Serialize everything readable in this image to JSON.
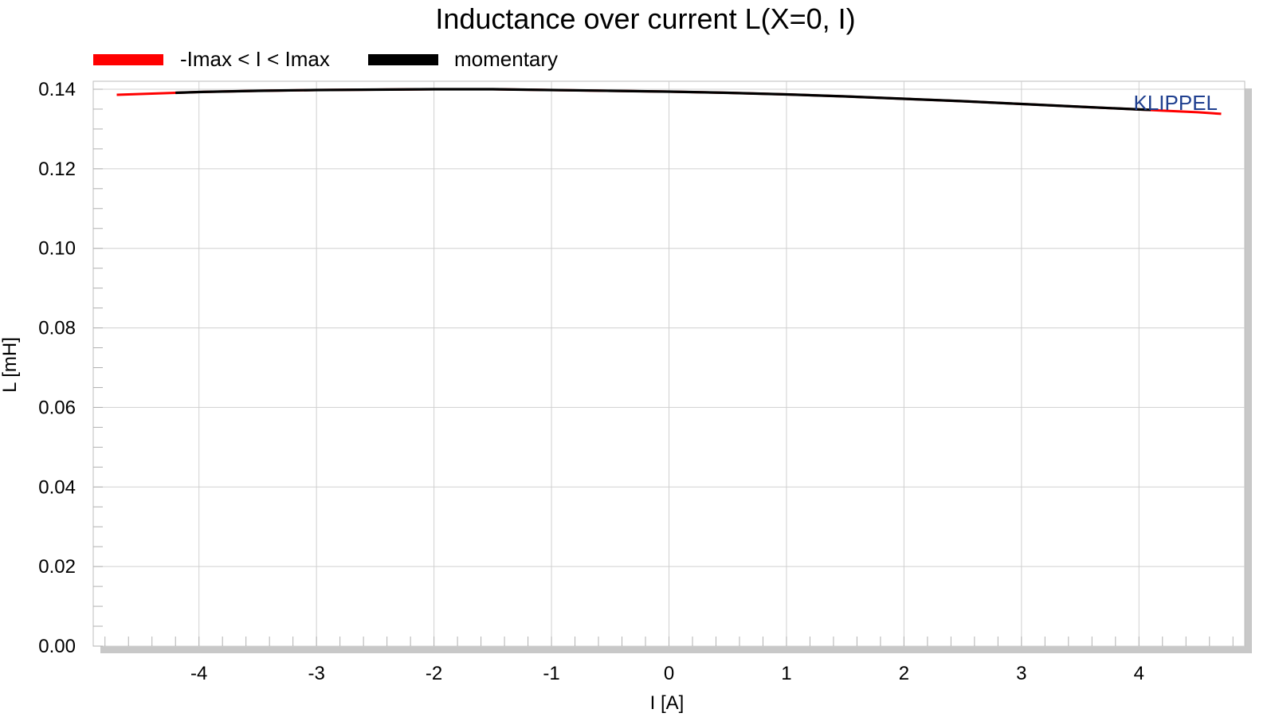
{
  "chart_data": {
    "type": "line",
    "title": "Inductance over current L(X=0, I)",
    "xlabel": "I [A]",
    "ylabel": "L [mH]",
    "xlim": [
      -4.9,
      4.9
    ],
    "ylim": [
      0.0,
      0.142
    ],
    "xticks": [
      -4,
      -3,
      -2,
      -1,
      0,
      1,
      2,
      3,
      4
    ],
    "xtick_labels": [
      "-4",
      "-3",
      "-2",
      "-1",
      "0",
      "1",
      "2",
      "3",
      "4"
    ],
    "yticks": [
      0.0,
      0.02,
      0.04,
      0.06,
      0.08,
      0.1,
      0.12,
      0.14
    ],
    "ytick_labels": [
      "0.00",
      "0.02",
      "0.04",
      "0.06",
      "0.08",
      "0.10",
      "0.12",
      "0.14"
    ],
    "grid": true,
    "legend_position": "top-left",
    "watermark": "KLIPPEL",
    "series": [
      {
        "name": "-Imax < I < Imax",
        "color": "#ff0000",
        "x": [
          -4.7,
          -4.5,
          -4.2,
          -4.0,
          -3.5,
          -3.0,
          -2.5,
          -2.0,
          -1.5,
          -1.0,
          -0.5,
          0.0,
          0.5,
          1.0,
          1.5,
          2.0,
          2.5,
          3.0,
          3.5,
          4.0,
          4.2,
          4.5,
          4.7
        ],
        "values": [
          0.1386,
          0.1388,
          0.1391,
          0.1393,
          0.1396,
          0.1398,
          0.1399,
          0.14,
          0.14,
          0.1398,
          0.1396,
          0.1394,
          0.1391,
          0.1387,
          0.1382,
          0.1376,
          0.137,
          0.1363,
          0.1356,
          0.1349,
          0.1346,
          0.1342,
          0.1338
        ]
      },
      {
        "name": "momentary",
        "color": "#000000",
        "x": [
          -4.2,
          -4.0,
          -3.5,
          -3.0,
          -2.5,
          -2.0,
          -1.5,
          -1.0,
          -0.5,
          0.0,
          0.5,
          1.0,
          1.5,
          2.0,
          2.5,
          3.0,
          3.5,
          4.0,
          4.1
        ],
        "values": [
          0.1391,
          0.1393,
          0.1396,
          0.1398,
          0.1399,
          0.14,
          0.14,
          0.1398,
          0.1396,
          0.1394,
          0.1391,
          0.1387,
          0.1382,
          0.1376,
          0.137,
          0.1363,
          0.1356,
          0.1349,
          0.1348
        ]
      }
    ]
  }
}
